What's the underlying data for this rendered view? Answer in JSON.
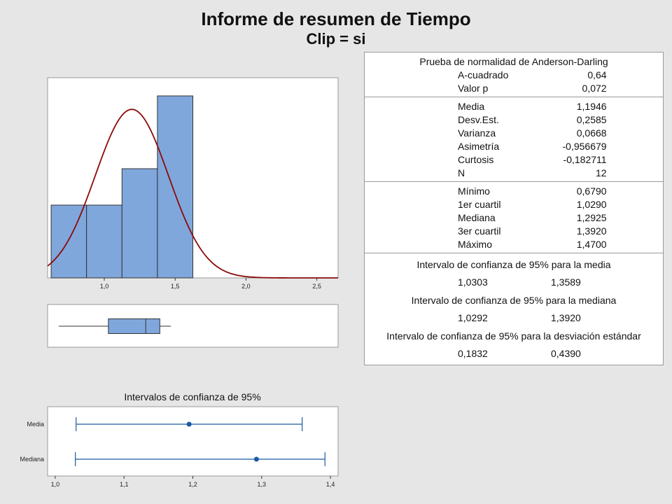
{
  "report": {
    "title": "Informe de resumen de Tiempo",
    "subtitle": "Clip = si"
  },
  "colors": {
    "bar_fill": "#7fa7dc",
    "bar_stroke": "#333333",
    "curve": "#8b0a0a",
    "ci_line": "#1a5aa0",
    "panel_bg": "#ffffff",
    "page_bg": "#e6e6e6"
  },
  "stats": {
    "anderson": {
      "title": "Prueba de normalidad de Anderson-Darling",
      "rows": [
        {
          "label": "A-cuadrado",
          "value": "0,64"
        },
        {
          "label": "Valor p",
          "value": "0,072"
        }
      ]
    },
    "moments": [
      {
        "label": "Media",
        "value": "1,1946"
      },
      {
        "label": "Desv.Est.",
        "value": "0,2585"
      },
      {
        "label": "Varianza",
        "value": "0,0668"
      },
      {
        "label": "Asimetría",
        "value": "-0,956679"
      },
      {
        "label": "Curtosis",
        "value": "-0,182711"
      },
      {
        "label": "N",
        "value": "12"
      }
    ],
    "quartiles": [
      {
        "label": "Mínimo",
        "value": "0,6790"
      },
      {
        "label": "1er cuartil",
        "value": "1,0290"
      },
      {
        "label": "Mediana",
        "value": "1,2925"
      },
      {
        "label": "3er cuartil",
        "value": "1,3920"
      },
      {
        "label": "Máximo",
        "value": "1,4700"
      }
    ],
    "ci_mean": {
      "title": "Intervalo de confianza de 95% para la media",
      "low": "1,0303",
      "high": "1,3589"
    },
    "ci_median": {
      "title": "Intervalo de confianza de 95% para la mediana",
      "low": "1,0292",
      "high": "1,3920"
    },
    "ci_sd": {
      "title": "Intervalo de confianza de 95% para la desviación estándar",
      "low": "0,1832",
      "high": "0,4390"
    }
  },
  "chart_data": [
    {
      "type": "bar",
      "name": "histogram",
      "bins": [
        {
          "from": 0.625,
          "to": 0.875,
          "count": 2
        },
        {
          "from": 0.875,
          "to": 1.125,
          "count": 2
        },
        {
          "from": 1.125,
          "to": 1.375,
          "count": 3
        },
        {
          "from": 1.375,
          "to": 1.625,
          "count": 5
        }
      ],
      "normal_fit": {
        "mean": 1.1946,
        "sd": 0.2585,
        "n": 12,
        "bin_width": 0.25
      },
      "xlim": [
        0.6,
        2.65
      ],
      "ylim": [
        0,
        5.5
      ],
      "xticks": [
        1.0,
        1.5,
        2.0,
        2.5
      ],
      "xtick_labels": [
        "1,0",
        "1,5",
        "2,0",
        "2,5"
      ]
    },
    {
      "type": "boxplot",
      "name": "boxplot",
      "min": 0.679,
      "q1": 1.029,
      "median": 1.2925,
      "q3": 1.392,
      "max": 1.47,
      "xlim": [
        0.6,
        2.65
      ]
    },
    {
      "type": "interval",
      "name": "confidence-intervals",
      "title": "Intervalos de confianza de 95%",
      "categories": [
        "Media",
        "Mediana"
      ],
      "intervals": [
        {
          "label": "Media",
          "low": 1.0303,
          "center": 1.1946,
          "high": 1.3589
        },
        {
          "label": "Mediana",
          "low": 1.0292,
          "center": 1.2925,
          "high": 1.392
        }
      ],
      "xlim": [
        0.995,
        1.405
      ],
      "xticks": [
        1.0,
        1.1,
        1.2,
        1.3,
        1.4
      ],
      "xtick_labels": [
        "1,0",
        "1,1",
        "1,2",
        "1,3",
        "1,4"
      ]
    }
  ]
}
